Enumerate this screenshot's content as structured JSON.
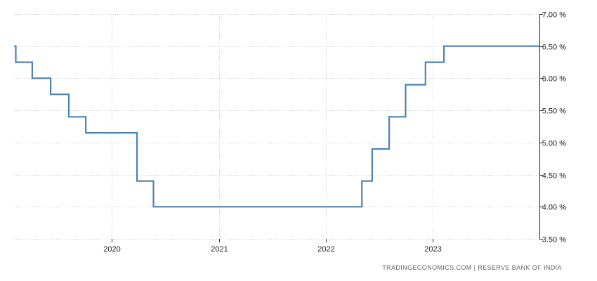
{
  "chart_data": {
    "type": "line",
    "step": true,
    "title": "",
    "xlabel": "",
    "ylabel": "",
    "x_axis_type": "date",
    "xlim": [
      "2019-02-01",
      "2023-12-31"
    ],
    "ylim": [
      3.5,
      7.0
    ],
    "y_ticks": [
      {
        "value": 7.0,
        "label": "7.00 %"
      },
      {
        "value": 6.5,
        "label": "6.50 %"
      },
      {
        "value": 6.0,
        "label": "6.00 %"
      },
      {
        "value": 5.5,
        "label": "5.50 %"
      },
      {
        "value": 5.0,
        "label": "5.00 %"
      },
      {
        "value": 4.5,
        "label": "4.50 %"
      },
      {
        "value": 4.0,
        "label": "4.00 %"
      },
      {
        "value": 3.5,
        "label": "3.50 %"
      }
    ],
    "x_ticks": [
      {
        "value": "2020-01-01",
        "label": "2020"
      },
      {
        "value": "2021-01-01",
        "label": "2021"
      },
      {
        "value": "2022-01-01",
        "label": "2022"
      },
      {
        "value": "2023-01-01",
        "label": "2023"
      }
    ],
    "grid": {
      "vertical": true,
      "horizontal": true,
      "style": "dotted"
    },
    "line_color": "#4a84b6",
    "series": [
      {
        "x": [
          "2019-02-07",
          "2019-04-04",
          "2019-06-06",
          "2019-08-07",
          "2019-10-04",
          "2020-03-27",
          "2020-05-22",
          "2022-05-04",
          "2022-06-08",
          "2022-08-05",
          "2022-09-30",
          "2022-12-07",
          "2023-02-08",
          "2023-12-31"
        ],
        "y": [
          6.25,
          6.0,
          5.75,
          5.4,
          5.15,
          4.4,
          4.0,
          4.4,
          4.9,
          5.4,
          5.9,
          6.25,
          6.5,
          6.5
        ]
      }
    ],
    "initial_value": {
      "x": "2019-02-01",
      "y": 6.5
    }
  },
  "source_text": "TRADINGECONOMICS.COM  |  RESERVE BANK OF INDIA"
}
